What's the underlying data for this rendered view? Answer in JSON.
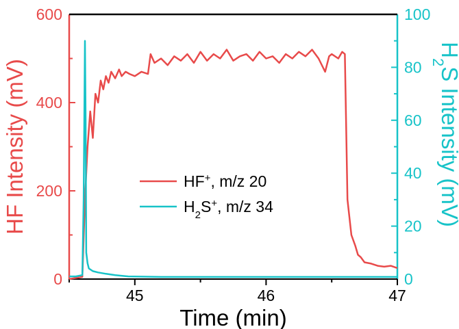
{
  "chart_data": {
    "type": "line",
    "xlabel": "Time (min)",
    "ylabel_left": "HF Intensity (mV)",
    "ylabel_right_parts": [
      "H",
      "2",
      "S Intensity (mV)"
    ],
    "xlim": [
      44.5,
      47
    ],
    "xticks": [
      45,
      46,
      47
    ],
    "ylim_left": [
      0,
      600
    ],
    "yticks_left": [
      0,
      200,
      400,
      600
    ],
    "ylim_right": [
      0,
      100
    ],
    "yticks_right": [
      0,
      20,
      40,
      60,
      80,
      100
    ],
    "grid": false,
    "legend_position": "center-left",
    "colors": {
      "hf": "#e84a4a",
      "h2s": "#17c3c8",
      "axis": "#000000"
    },
    "series": [
      {
        "key": "hf",
        "name_parts": [
          "HF",
          "+",
          ", m/z 20"
        ],
        "axis": "left",
        "x": [
          44.5,
          44.6,
          44.62,
          44.64,
          44.66,
          44.68,
          44.7,
          44.72,
          44.74,
          44.76,
          44.78,
          44.8,
          44.82,
          44.85,
          44.88,
          44.9,
          44.93,
          44.96,
          45.0,
          45.05,
          45.1,
          45.12,
          45.15,
          45.2,
          45.25,
          45.3,
          45.35,
          45.4,
          45.45,
          45.5,
          45.55,
          45.6,
          45.65,
          45.7,
          45.75,
          45.8,
          45.85,
          45.9,
          45.95,
          46.0,
          46.05,
          46.1,
          46.15,
          46.2,
          46.25,
          46.3,
          46.35,
          46.4,
          46.45,
          46.48,
          46.5,
          46.55,
          46.58,
          46.6,
          46.62,
          46.65,
          46.68,
          46.7,
          46.72,
          46.75,
          46.8,
          46.85,
          46.9,
          46.95,
          47.0
        ],
        "values": [
          0,
          5,
          180,
          300,
          380,
          320,
          420,
          400,
          450,
          430,
          460,
          445,
          470,
          455,
          475,
          460,
          470,
          465,
          460,
          470,
          465,
          510,
          490,
          500,
          485,
          505,
          495,
          510,
          490,
          515,
          495,
          510,
          500,
          520,
          495,
          505,
          510,
          495,
          515,
          500,
          505,
          490,
          510,
          500,
          515,
          505,
          520,
          500,
          470,
          505,
          510,
          500,
          515,
          510,
          180,
          100,
          75,
          55,
          50,
          38,
          35,
          30,
          28,
          30,
          25
        ]
      },
      {
        "key": "h2s",
        "name_parts": [
          "H",
          "2",
          "S",
          "+",
          ", m/z 34"
        ],
        "axis": "right",
        "x": [
          44.5,
          44.55,
          44.6,
          44.61,
          44.62,
          44.625,
          44.63,
          44.64,
          44.65,
          44.68,
          44.72,
          44.78,
          44.85,
          44.95,
          45.2,
          45.5,
          46.0,
          46.5,
          47.0
        ],
        "values": [
          1,
          1,
          1.5,
          30,
          90,
          60,
          10,
          6,
          4,
          3,
          2.5,
          2,
          1.5,
          1,
          0.8,
          0.8,
          0.8,
          0.8,
          0.8
        ]
      }
    ]
  }
}
